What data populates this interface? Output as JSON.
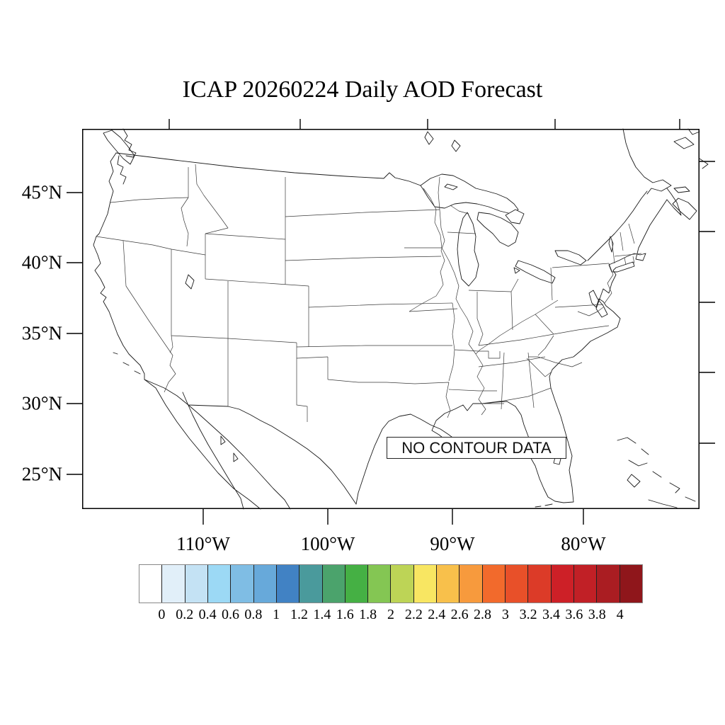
{
  "title": "ICAP 20260224 Daily AOD Forecast",
  "map": {
    "no_data_label": "NO CONTOUR DATA",
    "lat_tick_labels": [
      "45°N",
      "40°N",
      "35°N",
      "30°N",
      "25°N"
    ],
    "lon_tick_labels": [
      "110°W",
      "100°W",
      "90°W",
      "80°W"
    ]
  },
  "colorbar": {
    "tick_labels": [
      "0",
      "0.2",
      "0.4",
      "0.6",
      "0.8",
      "1",
      "1.2",
      "1.4",
      "1.6",
      "1.8",
      "2",
      "2.2",
      "2.4",
      "2.6",
      "2.8",
      "3",
      "3.2",
      "3.4",
      "3.6",
      "3.8",
      "4"
    ],
    "colors": [
      "#ffffff",
      "#e1eff9",
      "#c4e2f4",
      "#9cd9f5",
      "#7fbde4",
      "#67a9da",
      "#4182c4",
      "#4a9a9c",
      "#4ba36c",
      "#45b044",
      "#84c653",
      "#bdd456",
      "#f8e662",
      "#f8c04b",
      "#f79a3d",
      "#f26a2c",
      "#e85029",
      "#dc3b28",
      "#cd2027",
      "#c12026",
      "#aa1d22",
      "#8f161b"
    ]
  },
  "chart_data": {
    "type": "map-contour",
    "title": "ICAP 20260224 Daily AOD Forecast",
    "region": "Continental United States",
    "x_axis": {
      "label": "longitude",
      "tick_values_deg_west": [
        110,
        100,
        90,
        80
      ]
    },
    "y_axis": {
      "label": "latitude",
      "tick_values_deg_north": [
        45,
        40,
        35,
        30,
        25
      ]
    },
    "contour_values": [],
    "annotation": "NO CONTOUR DATA",
    "colorbar_levels": [
      0,
      0.2,
      0.4,
      0.6,
      0.8,
      1,
      1.2,
      1.4,
      1.6,
      1.8,
      2,
      2.2,
      2.4,
      2.6,
      2.8,
      3,
      3.2,
      3.4,
      3.6,
      3.8,
      4
    ],
    "colorbar_colors": [
      "#ffffff",
      "#e1eff9",
      "#c4e2f4",
      "#9cd9f5",
      "#7fbde4",
      "#67a9da",
      "#4182c4",
      "#4a9a9c",
      "#4ba36c",
      "#45b044",
      "#84c653",
      "#bdd456",
      "#f8e662",
      "#f8c04b",
      "#f79a3d",
      "#f26a2c",
      "#e85029",
      "#dc3b28",
      "#cd2027",
      "#c12026",
      "#aa1d22",
      "#8f161b"
    ],
    "legend_position": "bottom",
    "grid": false
  }
}
